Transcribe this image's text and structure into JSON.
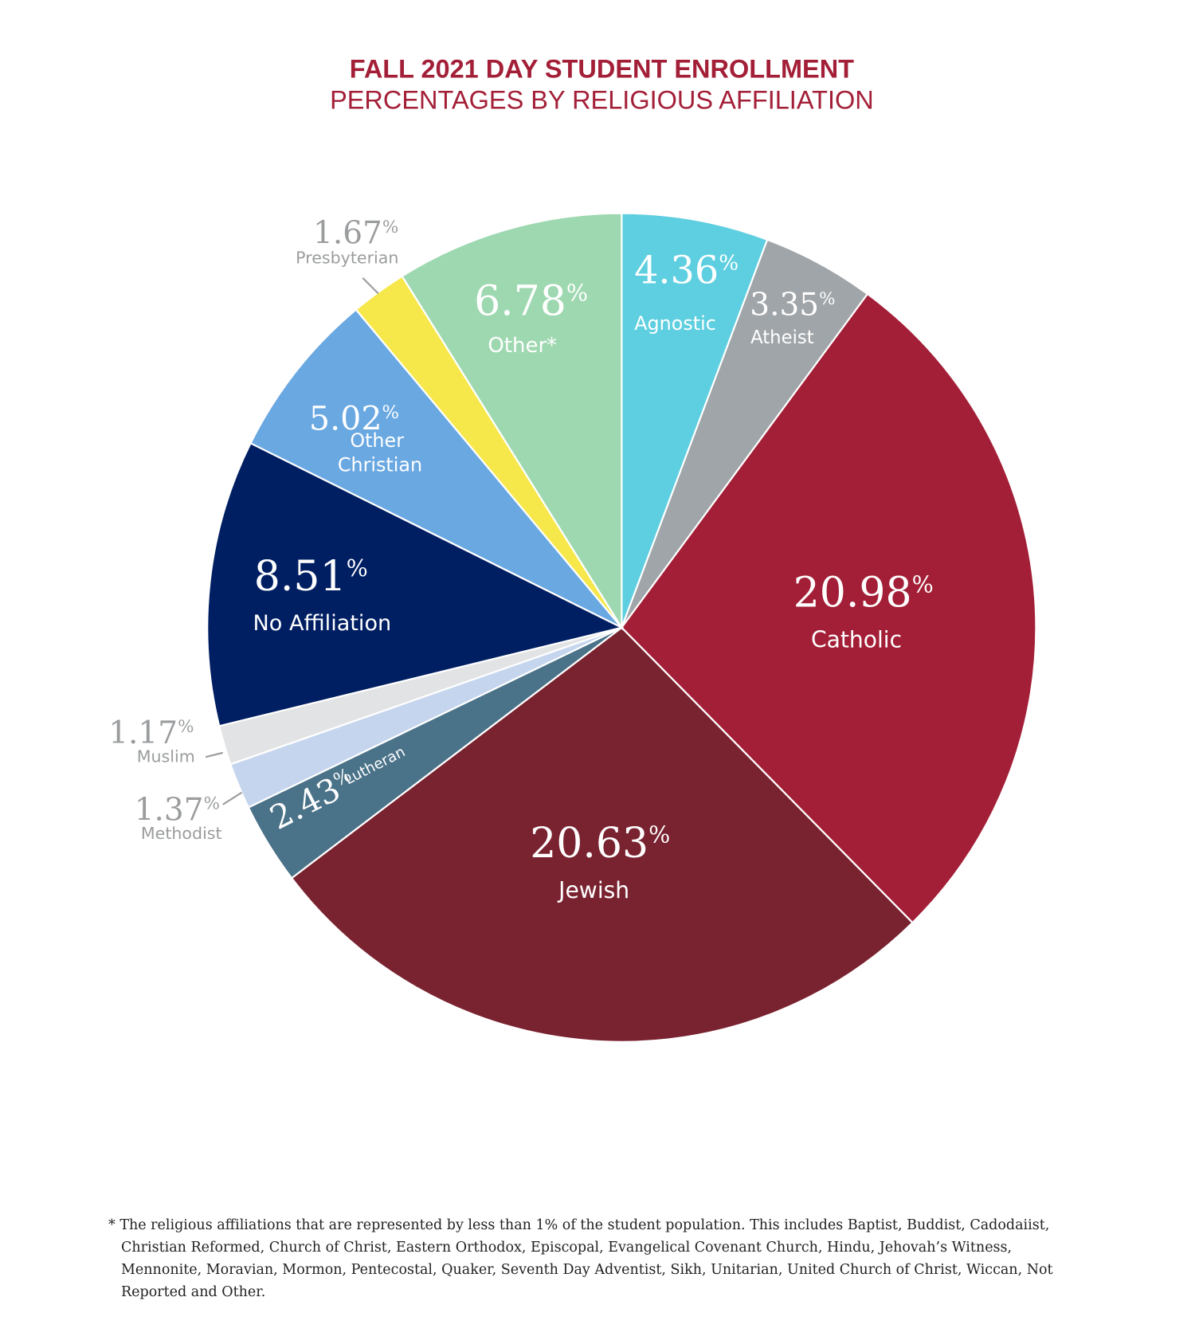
{
  "chart_data": {
    "type": "pie",
    "title": "FALL 2021 DAY STUDENT ENROLLMENT",
    "subtitle": "PERCENTAGES BY RELIGIOUS AFFILIATION",
    "categories": [
      "Agnostic",
      "Atheist",
      "Catholic",
      "Jewish",
      "Lutheran",
      "Methodist",
      "Muslim",
      "No Affiliation",
      "Other Christian",
      "Presbyterian",
      "Other*"
    ],
    "values": [
      4.36,
      3.35,
      20.98,
      20.63,
      2.43,
      1.37,
      1.17,
      8.51,
      5.02,
      1.67,
      6.78
    ],
    "value_labels": [
      "4.36%",
      "3.35%",
      "20.98%",
      "20.63%",
      "2.43%",
      "1.37%",
      "1.17%",
      "8.51%",
      "5.02%",
      "1.67%",
      "6.78%"
    ],
    "colors": [
      "#5ecfe0",
      "#a0a5a9",
      "#a31f37",
      "#7a2330",
      "#4a7288",
      "#c5d5ee",
      "#e2e3e4",
      "#001f63",
      "#6aa8e2",
      "#f6e84a",
      "#9ed8b0"
    ],
    "footnote": "* The religious affiliations that are represented by less than 1% of the student population. This includes Baptist, Buddist, Cadodaiist, Christian Reformed, Church of Christ, Eastern Orthodox, Episcopal, Evangelical Covenant Church, Hindu, Jehovah’s Witness, Mennonite, Moravian, Mormon, Pentecostal, Quaker, Seventh Day Adventist, Sikh, Unitarian, United Church of Christ, Wiccan, Not Reported and Other."
  }
}
